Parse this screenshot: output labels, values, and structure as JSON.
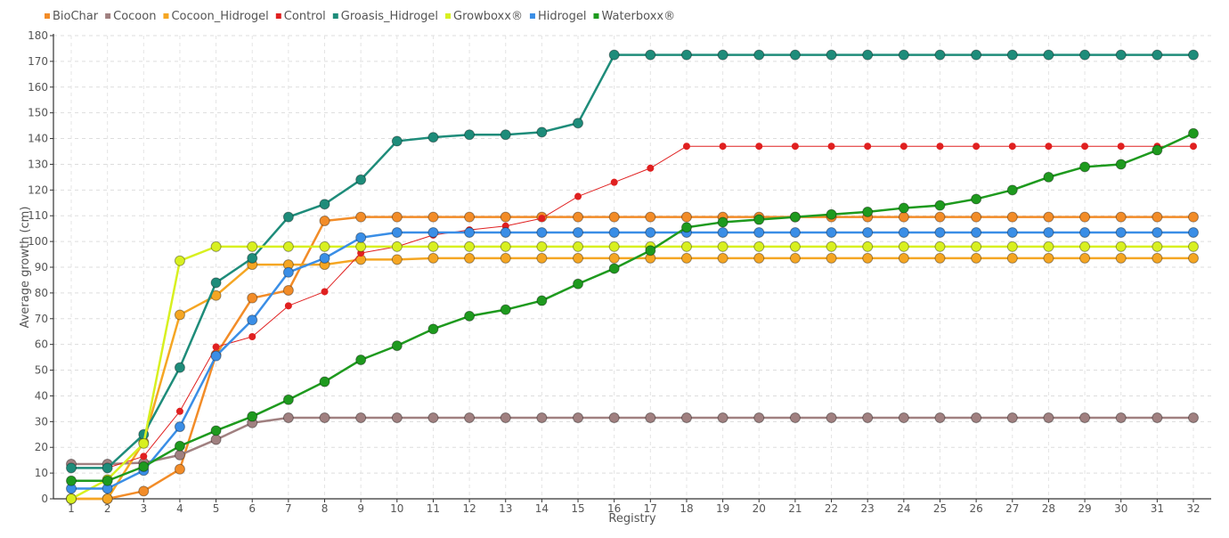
{
  "chart_data": {
    "type": "line",
    "xlabel": "Registry",
    "ylabel": "Average growth (cm)",
    "x": [
      1,
      2,
      3,
      4,
      5,
      6,
      7,
      8,
      9,
      10,
      11,
      12,
      13,
      14,
      15,
      16,
      17,
      18,
      19,
      20,
      21,
      22,
      23,
      24,
      25,
      26,
      27,
      28,
      29,
      30,
      31,
      32
    ],
    "ylim": [
      0,
      180
    ],
    "yticks": [
      0,
      10,
      20,
      30,
      40,
      50,
      60,
      70,
      80,
      90,
      100,
      110,
      120,
      130,
      140,
      150,
      160,
      170,
      180
    ],
    "grid": true,
    "legend": "top-left",
    "series": [
      {
        "name": "BioChar",
        "color": "#F28C28",
        "values": [
          0,
          0,
          3,
          11.5,
          56,
          78,
          81,
          108,
          109.5,
          109.5,
          109.5,
          109.5,
          109.5,
          109.5,
          109.5,
          109.5,
          109.5,
          109.5,
          109.5,
          109.5,
          109.5,
          109.5,
          109.5,
          109.5,
          109.5,
          109.5,
          109.5,
          109.5,
          109.5,
          109.5,
          109.5,
          109.5
        ]
      },
      {
        "name": "Cocoon",
        "color": "#A08080",
        "values": [
          13.5,
          13.5,
          14,
          17,
          23,
          29.5,
          31.5,
          31.5,
          31.5,
          31.5,
          31.5,
          31.5,
          31.5,
          31.5,
          31.5,
          31.5,
          31.5,
          31.5,
          31.5,
          31.5,
          31.5,
          31.5,
          31.5,
          31.5,
          31.5,
          31.5,
          31.5,
          31.5,
          31.5,
          31.5,
          31.5,
          31.5
        ]
      },
      {
        "name": "Cocoon_Hidrogel",
        "color": "#F5A623",
        "values": [
          0,
          0,
          22,
          71.5,
          79,
          91,
          91,
          91,
          93,
          93,
          93.5,
          93.5,
          93.5,
          93.5,
          93.5,
          93.5,
          93.5,
          93.5,
          93.5,
          93.5,
          93.5,
          93.5,
          93.5,
          93.5,
          93.5,
          93.5,
          93.5,
          93.5,
          93.5,
          93.5,
          93.5,
          93.5
        ]
      },
      {
        "name": "Control",
        "color": "#E02020",
        "values": [
          12,
          12,
          16.5,
          34,
          59,
          63,
          75,
          80.5,
          95.5,
          98,
          102.5,
          104.5,
          106,
          109,
          117.5,
          123,
          128.5,
          137,
          137,
          137,
          137,
          137,
          137,
          137,
          137,
          137,
          137,
          137,
          137,
          137,
          137,
          137
        ]
      },
      {
        "name": "Groasis_Hidrogel",
        "color": "#1E8C7A",
        "values": [
          12,
          12,
          25,
          51,
          84,
          93.5,
          109.5,
          114.5,
          124,
          139,
          140.5,
          141.5,
          141.5,
          142.5,
          146,
          172.5,
          172.5,
          172.5,
          172.5,
          172.5,
          172.5,
          172.5,
          172.5,
          172.5,
          172.5,
          172.5,
          172.5,
          172.5,
          172.5,
          172.5,
          172.5,
          172.5
        ]
      },
      {
        "name": "Growboxx®",
        "color": "#D8F020",
        "values": [
          0,
          7.5,
          21.5,
          92.5,
          98,
          98,
          98,
          98,
          98,
          98,
          98,
          98,
          98,
          98,
          98,
          98,
          98,
          98,
          98,
          98,
          98,
          98,
          98,
          98,
          98,
          98,
          98,
          98,
          98,
          98,
          98,
          98
        ]
      },
      {
        "name": "Hidrogel",
        "color": "#3A8EE6",
        "values": [
          4,
          4,
          11,
          28,
          55.5,
          69.5,
          88,
          93.5,
          101.5,
          103.5,
          103.5,
          103.5,
          103.5,
          103.5,
          103.5,
          103.5,
          103.5,
          103.5,
          103.5,
          103.5,
          103.5,
          103.5,
          103.5,
          103.5,
          103.5,
          103.5,
          103.5,
          103.5,
          103.5,
          103.5,
          103.5,
          103.5
        ]
      },
      {
        "name": "Waterboxx®",
        "color": "#1E9A1E",
        "values": [
          7,
          7,
          12.5,
          20.5,
          26.5,
          32,
          38.5,
          45.5,
          54,
          59.5,
          66,
          71,
          73.5,
          77,
          83.5,
          89.5,
          96.5,
          105.5,
          107.5,
          108.5,
          109.5,
          110.5,
          111.5,
          113,
          114,
          116.5,
          120,
          125,
          129,
          130,
          135.5,
          142
        ]
      }
    ]
  }
}
